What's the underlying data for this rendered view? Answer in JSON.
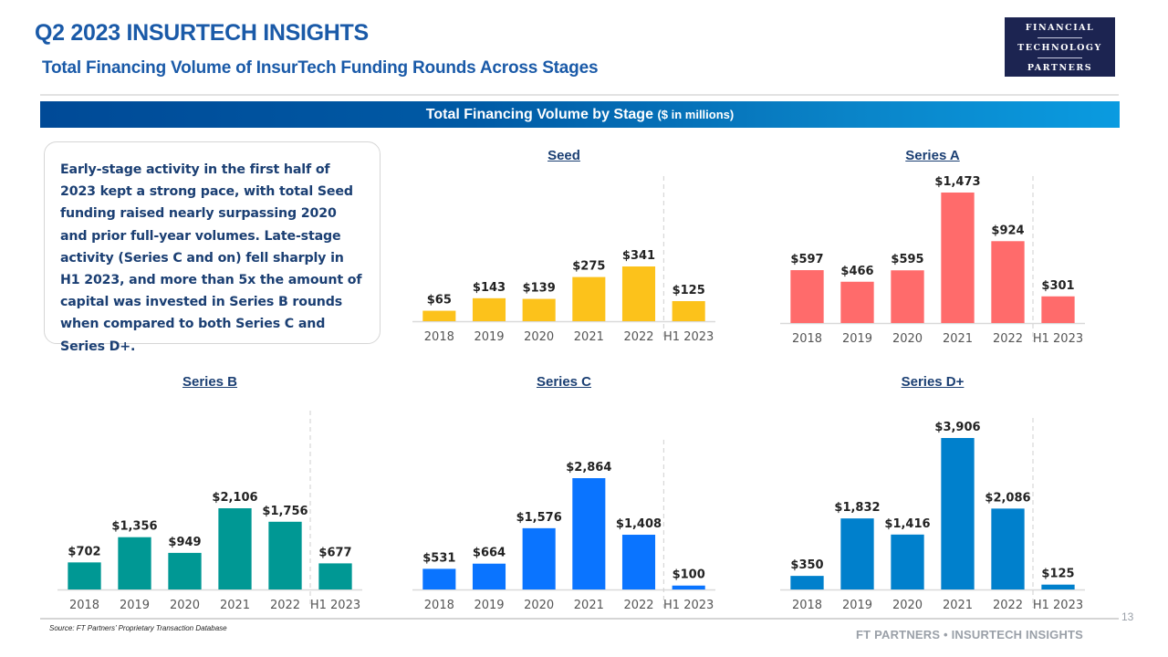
{
  "header": {
    "title": "Q2 2023 INSURTECH INSIGHTS",
    "subtitle": "Total Financing Volume of InsurTech Funding Rounds Across Stages",
    "logo": {
      "line1": "FINANCIAL",
      "line2": "TECHNOLOGY",
      "line3": "PARTNERS"
    }
  },
  "banner": {
    "main": "Total Financing Volume by Stage",
    "unit": "($ in millions)"
  },
  "callout": {
    "text": "Early-stage activity in the first half of 2023 kept a strong pace, with total Seed funding raised nearly surpassing 2020 and prior full-year volumes. Late-stage activity (Series C and on) fell sharply in H1 2023, and more than 5x the amount of capital was invested in Series B rounds when compared to both Series C and Series D+."
  },
  "colors": {
    "title": "#1a5aa8",
    "seed": "#fcc21b",
    "series_a": "#ff6b6b",
    "series_b": "#009894",
    "series_c": "#0a74ff",
    "series_d": "#0080cc"
  },
  "chart_data": [
    {
      "type": "bar",
      "title": "Seed",
      "categories": [
        "2018",
        "2019",
        "2020",
        "2021",
        "2022",
        "H1 2023"
      ],
      "values": [
        65,
        143,
        139,
        275,
        341,
        125
      ],
      "labels": [
        "$65",
        "$143",
        "$139",
        "$275",
        "$341",
        "$125"
      ],
      "xlabel": "",
      "ylabel": "$ in millions",
      "color": "#fcc21b",
      "grid": false,
      "divider_before": "H1 2023"
    },
    {
      "type": "bar",
      "title": "Series A",
      "categories": [
        "2018",
        "2019",
        "2020",
        "2021",
        "2022",
        "H1 2023"
      ],
      "values": [
        597,
        466,
        595,
        1473,
        924,
        301
      ],
      "labels": [
        "$597",
        "$466",
        "$595",
        "$1,473",
        "$924",
        "$301"
      ],
      "xlabel": "",
      "ylabel": "$ in millions",
      "color": "#ff6b6b",
      "grid": false,
      "divider_before": "H1 2023"
    },
    {
      "type": "bar",
      "title": "Series B",
      "categories": [
        "2018",
        "2019",
        "2020",
        "2021",
        "2022",
        "H1 2023"
      ],
      "values": [
        702,
        1356,
        949,
        2106,
        1756,
        677
      ],
      "labels": [
        "$702",
        "$1,356",
        "$949",
        "$2,106",
        "$1,756",
        "$677"
      ],
      "xlabel": "",
      "ylabel": "$ in millions",
      "color": "#009894",
      "grid": false,
      "divider_before": "H1 2023"
    },
    {
      "type": "bar",
      "title": "Series C",
      "categories": [
        "2018",
        "2019",
        "2020",
        "2021",
        "2022",
        "H1 2023"
      ],
      "values": [
        531,
        664,
        1576,
        2864,
        1408,
        100
      ],
      "labels": [
        "$531",
        "$664",
        "$1,576",
        "$2,864",
        "$1,408",
        "$100"
      ],
      "xlabel": "",
      "ylabel": "$ in millions",
      "color": "#0a74ff",
      "grid": false,
      "divider_before": "H1 2023"
    },
    {
      "type": "bar",
      "title": "Series D+",
      "categories": [
        "2018",
        "2019",
        "2020",
        "2021",
        "2022",
        "H1 2023"
      ],
      "values": [
        350,
        1832,
        1416,
        3906,
        2086,
        125
      ],
      "labels": [
        "$350",
        "$1,832",
        "$1,416",
        "$3,906",
        "$2,086",
        "$125"
      ],
      "xlabel": "",
      "ylabel": "$ in millions",
      "color": "#0080cc",
      "grid": false,
      "divider_before": "H1 2023"
    }
  ],
  "footer": {
    "source": "Source: FT Partners’ Proprietary Transaction Database",
    "page_number": "13",
    "brand": "FT PARTNERS • INSURTECH INSIGHTS"
  }
}
